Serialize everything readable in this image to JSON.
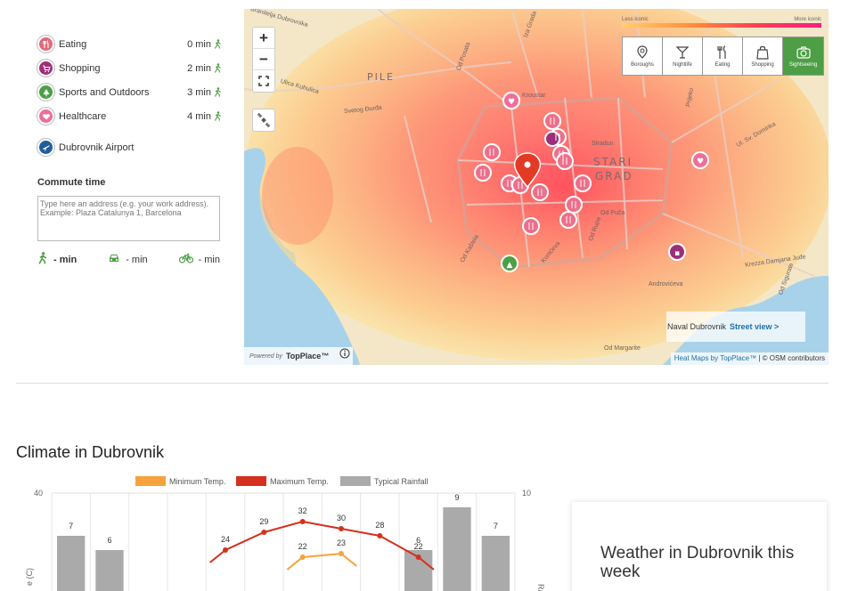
{
  "poi": [
    {
      "label": "Eating",
      "time": "0 min",
      "icon": "fork-knife-icon",
      "color": "#e06b7a"
    },
    {
      "label": "Shopping",
      "time": "2 min",
      "icon": "cart-icon",
      "color": "#9c2f7a"
    },
    {
      "label": "Sports and Outdoors",
      "time": "3 min",
      "icon": "tree-icon",
      "color": "#4d9e45"
    },
    {
      "label": "Healthcare",
      "time": "4 min",
      "icon": "heart-icon",
      "color": "#ee6e9a"
    }
  ],
  "airport": {
    "label": "Dubrovnik Airport",
    "icon": "plane-icon",
    "color": "#1f5fa0"
  },
  "commute": {
    "title": "Commute time",
    "placeholder": "Type here an address (e.g. your work address).\nExample: Plaza Catalunya 1, Barcelona",
    "walk": "- min",
    "car": "- min",
    "bike": "- min"
  },
  "map": {
    "zoom_in": "+",
    "zoom_out": "−",
    "legend_left": "Less iconic",
    "legend_right": "More iconic",
    "categories": [
      {
        "label": "Boroughs",
        "icon": "location-icon",
        "active": false
      },
      {
        "label": "Nightlife",
        "icon": "cocktail-icon",
        "active": false
      },
      {
        "label": "Eating",
        "icon": "fork-knife-icon",
        "active": false
      },
      {
        "label": "Shopping",
        "icon": "bag-icon",
        "active": false
      },
      {
        "label": "Sightseeing",
        "icon": "camera-icon",
        "active": true
      }
    ],
    "places": {
      "pile": "PILE",
      "stari1": "STARI",
      "stari2": "GRAD"
    },
    "streets": [
      "Branitelja Dubrovnika",
      "Od Posata",
      "Iza Grada",
      "Ulica Kuhulica",
      "Svetog Đurđa",
      "Kroustar",
      "Stradun",
      "Ul. Sv. Dominka",
      "Od Kaštela",
      "Od Puča",
      "Od Margarite",
      "Androvićeva",
      "Krezza Damjana Jude",
      "Prijeko",
      "Od Rupa",
      "Kunićeva",
      "Od Sigurate"
    ],
    "street_view_place": "Naval Dubrovnik",
    "street_view_link": "Street view >",
    "powered_by": "Powered by",
    "powered_brand": "TopPlace™",
    "attribution_1": "Heat Maps by TopPlace™",
    "attribution_2": " | © OSM contributors"
  },
  "climate": {
    "title": "Climate in Dubrovnik"
  },
  "chart_data": {
    "type": "bar",
    "legend": [
      "Minimum Temp.",
      "Maximum Temp.",
      "Typical Rainfall"
    ],
    "legend_placement": "top",
    "y_left_max": 40,
    "y_right_max": 10,
    "y_left_ticks": [
      "40"
    ],
    "y_right_ticks": [
      "10"
    ],
    "ylabel_left": "e (C)",
    "ylabel_right": "Ra",
    "rainfall": [
      7,
      6,
      null,
      null,
      null,
      null,
      null,
      null,
      null,
      6,
      9,
      7
    ],
    "rainfall_labels": [
      "7",
      "6",
      "",
      "",
      "",
      "",
      "",
      "",
      "",
      "6",
      "9",
      "7"
    ],
    "max_temp": [
      null,
      null,
      null,
      null,
      24,
      29,
      32,
      30,
      28,
      22,
      null,
      null
    ],
    "max_temp_labels": [
      "",
      "",
      "",
      "",
      "24",
      "29",
      "32",
      "30",
      "28",
      "22",
      "",
      ""
    ],
    "min_temp": [
      null,
      null,
      null,
      null,
      null,
      null,
      22,
      23,
      null,
      null,
      null,
      null
    ],
    "min_temp_labels": [
      "",
      "",
      "",
      "",
      "",
      "",
      "22",
      "23",
      "",
      "",
      "",
      ""
    ],
    "colors": {
      "min": "#f7a23c",
      "max": "#d6301e",
      "rain": "#aaaaaa"
    }
  },
  "weather": {
    "title": "Weather in Dubrovnik this week"
  }
}
